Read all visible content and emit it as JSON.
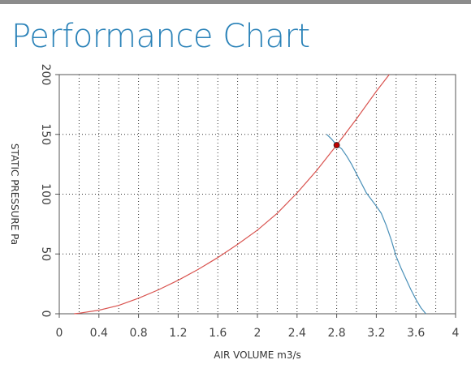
{
  "chart_data": {
    "type": "line",
    "title": "Performance Chart",
    "xlabel": "AIR VOLUME m3/s",
    "ylabel": "STATIC PRESSURE Pa",
    "xlim": [
      0,
      4
    ],
    "ylim": [
      0,
      200
    ],
    "x_ticks": [
      "0",
      "0.4",
      "0.8",
      "1.2",
      "1.6",
      "2",
      "2.4",
      "2.8",
      "3.2",
      "3.6",
      "4"
    ],
    "y_ticks": [
      "0",
      "50",
      "100",
      "150",
      "200"
    ],
    "grid": true,
    "series": [
      {
        "color": "#d9534f",
        "x": [
          0.15,
          0.2,
          0.4,
          0.6,
          0.8,
          1.0,
          1.2,
          1.4,
          1.6,
          1.8,
          2.0,
          2.2,
          2.4,
          2.6,
          2.8,
          3.0,
          3.2,
          3.33
        ],
        "y": [
          0,
          0.5,
          3,
          7,
          13,
          20,
          28,
          37,
          47,
          58,
          70,
          84,
          101,
          120,
          141,
          163,
          186,
          200
        ]
      },
      {
        "color": "#4a90b8",
        "x": [
          2.7,
          2.75,
          2.8,
          2.85,
          2.9,
          2.95,
          3.0,
          3.05,
          3.1,
          3.2,
          3.25,
          3.3,
          3.35,
          3.4,
          3.45,
          3.5,
          3.55,
          3.6,
          3.65,
          3.7
        ],
        "y": [
          150,
          146,
          141,
          138,
          132,
          125,
          117,
          109,
          101,
          90,
          84,
          74,
          62,
          48,
          38,
          29,
          20,
          12,
          5,
          0
        ]
      }
    ],
    "operating_point": {
      "x": 2.8,
      "y": 141,
      "color": "#c00000"
    }
  }
}
